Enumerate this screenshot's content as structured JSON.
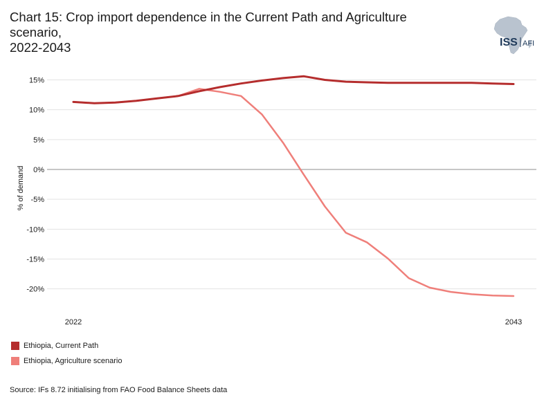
{
  "header": {
    "title_line1": "Chart 15: Crop import dependence in the Current Path and Agriculture scenario,",
    "title_line2": "2022-2043"
  },
  "logo": {
    "text_main": "ISS",
    "text_sub": "AFI",
    "icon": "africa-map-icon"
  },
  "source": "Source: IFs 8.72 initialising from FAO Food Balance Sheets data",
  "chart_data": {
    "type": "line",
    "title": "Chart 15: Crop import dependence in the Current Path and Agriculture scenario, 2022-2043",
    "xlabel": "",
    "ylabel": "% of demand",
    "x": [
      2022,
      2023,
      2024,
      2025,
      2026,
      2027,
      2028,
      2029,
      2030,
      2031,
      2032,
      2033,
      2034,
      2035,
      2036,
      2037,
      2038,
      2039,
      2040,
      2041,
      2042,
      2043
    ],
    "x_tick_labels": [
      "2022",
      "2043"
    ],
    "ylim": [
      -22,
      17
    ],
    "y_ticks": [
      15,
      10,
      5,
      0,
      -5,
      -10,
      -15,
      -20
    ],
    "y_tick_labels": [
      "15%",
      "10%",
      "5%",
      "0%",
      "-5%",
      "-10%",
      "-15%",
      "-20%"
    ],
    "grid": true,
    "legend_position": "bottom-left",
    "series": [
      {
        "name": "Ethiopia, Current Path",
        "color": "#b52d2d",
        "values": [
          11.3,
          11.1,
          11.2,
          11.5,
          11.9,
          12.3,
          13.1,
          13.8,
          14.4,
          14.9,
          15.3,
          15.6,
          15.0,
          14.7,
          14.6,
          14.5,
          14.5,
          14.5,
          14.5,
          14.5,
          14.4,
          14.3
        ]
      },
      {
        "name": "Ethiopia, Agriculture scenario",
        "color": "#ef7f7a",
        "values": [
          11.3,
          11.1,
          11.2,
          11.5,
          11.9,
          12.3,
          13.5,
          13.0,
          12.3,
          9.2,
          4.5,
          -0.9,
          -6.2,
          -10.6,
          -12.2,
          -14.9,
          -18.2,
          -19.8,
          -20.5,
          -20.9,
          -21.1,
          -21.2
        ]
      }
    ]
  }
}
